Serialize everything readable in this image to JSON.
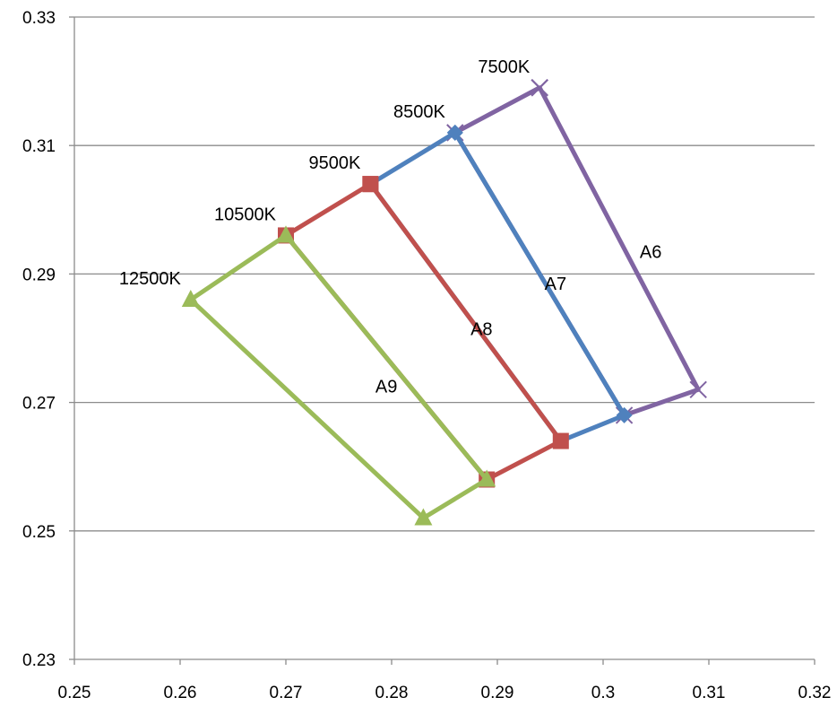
{
  "chart_data": {
    "type": "scatter",
    "xlim": [
      0.25,
      0.32
    ],
    "ylim": [
      0.23,
      0.33
    ],
    "x_ticks": [
      "0.25",
      "0.26",
      "0.27",
      "0.28",
      "0.29",
      "0.3",
      "0.31",
      "0.32"
    ],
    "y_ticks": [
      "0.23",
      "0.25",
      "0.27",
      "0.29",
      "0.31",
      "0.33"
    ],
    "x_tick_values": [
      0.25,
      0.26,
      0.27,
      0.28,
      0.29,
      0.3,
      0.31,
      0.32
    ],
    "y_tick_values": [
      0.23,
      0.25,
      0.27,
      0.29,
      0.31,
      0.33
    ],
    "grid": "horizontal",
    "legend": "none",
    "series": [
      {
        "color": "#8064A2",
        "marker": "x",
        "points": [
          [
            0.294,
            0.319
          ],
          [
            0.309,
            0.272
          ],
          [
            0.302,
            0.268
          ],
          [
            0.286,
            0.312
          ],
          [
            0.294,
            0.319
          ]
        ]
      },
      {
        "color": "#4F81BD",
        "marker": "diamond",
        "points": [
          [
            0.286,
            0.312
          ],
          [
            0.302,
            0.268
          ],
          [
            0.296,
            0.264
          ],
          [
            0.278,
            0.304
          ],
          [
            0.286,
            0.312
          ]
        ]
      },
      {
        "color": "#C0504D",
        "marker": "square",
        "points": [
          [
            0.278,
            0.304
          ],
          [
            0.296,
            0.264
          ],
          [
            0.289,
            0.258
          ],
          [
            0.27,
            0.296
          ],
          [
            0.278,
            0.304
          ]
        ]
      },
      {
        "color": "#9BBB59",
        "marker": "triangle",
        "points": [
          [
            0.27,
            0.296
          ],
          [
            0.289,
            0.258
          ],
          [
            0.283,
            0.252
          ],
          [
            0.261,
            0.286
          ],
          [
            0.27,
            0.296
          ]
        ]
      }
    ],
    "point_labels": [
      {
        "text": "7500K",
        "x": 0.294,
        "y": 0.319
      },
      {
        "text": "8500K",
        "x": 0.286,
        "y": 0.312
      },
      {
        "text": "9500K",
        "x": 0.278,
        "y": 0.304
      },
      {
        "text": "10500K",
        "x": 0.27,
        "y": 0.296
      },
      {
        "text": "12500K",
        "x": 0.261,
        "y": 0.286
      }
    ],
    "region_labels": [
      {
        "text": "A6",
        "x": 0.3045,
        "y": 0.2935
      },
      {
        "text": "A7",
        "x": 0.2955,
        "y": 0.2885
      },
      {
        "text": "A8",
        "x": 0.2885,
        "y": 0.2815
      },
      {
        "text": "A9",
        "x": 0.2795,
        "y": 0.2725
      }
    ]
  }
}
